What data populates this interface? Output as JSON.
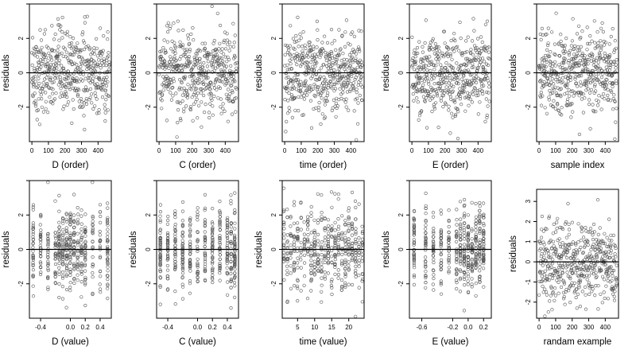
{
  "chart_data": [
    {
      "type": "scatter",
      "title": "",
      "xlabel": "D (order)",
      "ylabel": "residuals",
      "xlim": [
        -15,
        480
      ],
      "ylim": [
        -4,
        4
      ],
      "xticks": [
        0,
        100,
        200,
        300,
        400
      ],
      "xtick_labels": [
        "0",
        "100",
        "200",
        "300",
        "400"
      ],
      "yticks": [
        -2,
        0,
        2,
        4
      ],
      "ytick_labels": [
        "-2",
        "0",
        "2",
        ""
      ],
      "hline": 0,
      "x_kind": "index",
      "n_points": 470,
      "y_spread": 1.2
    },
    {
      "type": "scatter",
      "title": "",
      "xlabel": "C (order)",
      "ylabel": "residuals",
      "xlim": [
        -15,
        480
      ],
      "ylim": [
        -4,
        4
      ],
      "xticks": [
        0,
        100,
        200,
        300,
        400
      ],
      "xtick_labels": [
        "0",
        "100",
        "200",
        "300",
        "400"
      ],
      "yticks": [
        -2,
        0,
        2,
        4
      ],
      "ytick_labels": [
        "-2",
        "0",
        "2",
        ""
      ],
      "hline": 0,
      "x_kind": "index",
      "n_points": 470,
      "y_spread": 1.2
    },
    {
      "type": "scatter",
      "title": "",
      "xlabel": "time (order)",
      "ylabel": "residuals",
      "xlim": [
        -15,
        480
      ],
      "ylim": [
        -4,
        4
      ],
      "xticks": [
        0,
        100,
        200,
        300,
        400
      ],
      "xtick_labels": [
        "0",
        "100",
        "200",
        "300",
        "400"
      ],
      "yticks": [
        -2,
        0,
        2,
        4
      ],
      "ytick_labels": [
        "-2",
        "0",
        "2",
        ""
      ],
      "hline": 0,
      "x_kind": "index",
      "n_points": 470,
      "y_spread": 1.2
    },
    {
      "type": "scatter",
      "title": "",
      "xlabel": "E (order)",
      "ylabel": "residuals",
      "xlim": [
        -15,
        480
      ],
      "ylim": [
        -4,
        4
      ],
      "xticks": [
        0,
        100,
        200,
        300,
        400
      ],
      "xtick_labels": [
        "0",
        "100",
        "200",
        "300",
        "400"
      ],
      "yticks": [
        -2,
        0,
        2,
        4
      ],
      "ytick_labels": [
        "-2",
        "0",
        "2",
        ""
      ],
      "hline": 0,
      "x_kind": "index",
      "n_points": 470,
      "y_spread": 1.2
    },
    {
      "type": "scatter",
      "title": "",
      "xlabel": "sample index",
      "ylabel": "residuals",
      "xlim": [
        -15,
        480
      ],
      "ylim": [
        -4,
        4
      ],
      "xticks": [
        0,
        100,
        200,
        300,
        400
      ],
      "xtick_labels": [
        "0",
        "100",
        "200",
        "300",
        "400"
      ],
      "yticks": [
        -2,
        0,
        2,
        4
      ],
      "ytick_labels": [
        "-2",
        "0",
        "2",
        ""
      ],
      "hline": 0,
      "x_kind": "index",
      "n_points": 470,
      "y_spread": 1.2
    },
    {
      "type": "scatter",
      "title": "",
      "xlabel": "D (value)",
      "ylabel": "residuals",
      "xlim": [
        -0.55,
        0.55
      ],
      "ylim": [
        -4,
        4
      ],
      "xticks": [
        -0.4,
        0,
        0.2,
        0.4
      ],
      "xtick_labels": [
        "-0.4",
        "0.0",
        "0.2",
        "0.4"
      ],
      "yticks": [
        -2,
        0,
        2,
        4
      ],
      "ytick_labels": [
        "-2",
        "0",
        "2",
        ""
      ],
      "hline": 0,
      "x_kind": "levels",
      "x_levels": [
        -0.5,
        -0.4,
        -0.3,
        -0.2,
        -0.15,
        -0.1,
        -0.05,
        0,
        0.05,
        0.1,
        0.15,
        0.2,
        0.3,
        0.4,
        0.5
      ],
      "n_points": 470,
      "y_spread": 1.2
    },
    {
      "type": "scatter",
      "title": "",
      "xlabel": "C (value)",
      "ylabel": "residuals",
      "xlim": [
        -0.55,
        0.55
      ],
      "ylim": [
        -4,
        4
      ],
      "xticks": [
        -0.4,
        0,
        0.2,
        0.4
      ],
      "xtick_labels": [
        "-0.4",
        "0.0",
        "0.2",
        "0.4"
      ],
      "yticks": [
        -2,
        0,
        2,
        4
      ],
      "ytick_labels": [
        "-2",
        "0",
        "2",
        ""
      ],
      "hline": 0,
      "x_kind": "levels",
      "x_levels": [
        -0.5,
        -0.4,
        -0.3,
        -0.2,
        -0.1,
        0,
        0.1,
        0.2,
        0.3,
        0.4,
        0.45,
        0.5
      ],
      "n_points": 470,
      "y_spread": 1.2
    },
    {
      "type": "scatter",
      "title": "",
      "xlabel": "time (value)",
      "ylabel": "residuals",
      "xlim": [
        0.5,
        24.5
      ],
      "ylim": [
        -4,
        4
      ],
      "xticks": [
        5,
        10,
        15,
        20
      ],
      "xtick_labels": [
        "5",
        "10",
        "15",
        "20"
      ],
      "yticks": [
        -2,
        0,
        2,
        4
      ],
      "ytick_labels": [
        "-2",
        "0",
        "2",
        ""
      ],
      "hline": 0,
      "x_kind": "levels",
      "x_levels": [
        1,
        2,
        3,
        4,
        5,
        6,
        7,
        8,
        9,
        10,
        11,
        12,
        13,
        14,
        15,
        16,
        17,
        18,
        19,
        20,
        21,
        22,
        23,
        24
      ],
      "n_points": 470,
      "y_spread": 1.2
    },
    {
      "type": "scatter",
      "title": "",
      "xlabel": "E (value)",
      "ylabel": "residuals",
      "xlim": [
        -0.76,
        0.3
      ],
      "ylim": [
        -4,
        4
      ],
      "xticks": [
        -0.6,
        -0.2,
        0,
        0.2
      ],
      "xtick_labels": [
        "-0.6",
        "-0.2",
        "0.0",
        "0.2"
      ],
      "yticks": [
        -2,
        0,
        2,
        4
      ],
      "ytick_labels": [
        "-2",
        "0",
        "2",
        ""
      ],
      "hline": 0,
      "x_kind": "levels",
      "x_levels": [
        -0.7,
        -0.55,
        -0.45,
        -0.35,
        -0.25,
        -0.15,
        -0.1,
        -0.05,
        0,
        0.05,
        0.1,
        0.15,
        0.2
      ],
      "n_points": 470,
      "y_spread": 1.2
    },
    {
      "type": "scatter",
      "title": "",
      "xlabel": "randam example",
      "ylabel": "residuals",
      "xlim": [
        -15,
        480
      ],
      "ylim": [
        -2.8,
        3.6
      ],
      "xticks": [
        0,
        100,
        200,
        300,
        400
      ],
      "xtick_labels": [
        "0",
        "100",
        "200",
        "300",
        "400"
      ],
      "yticks": [
        -2,
        -1,
        0,
        1,
        2,
        3
      ],
      "ytick_labels": [
        "-2",
        "-1",
        "0",
        "1",
        "2",
        "3"
      ],
      "hline": 0,
      "x_kind": "index",
      "n_points": 470,
      "y_spread": 1.0
    }
  ]
}
